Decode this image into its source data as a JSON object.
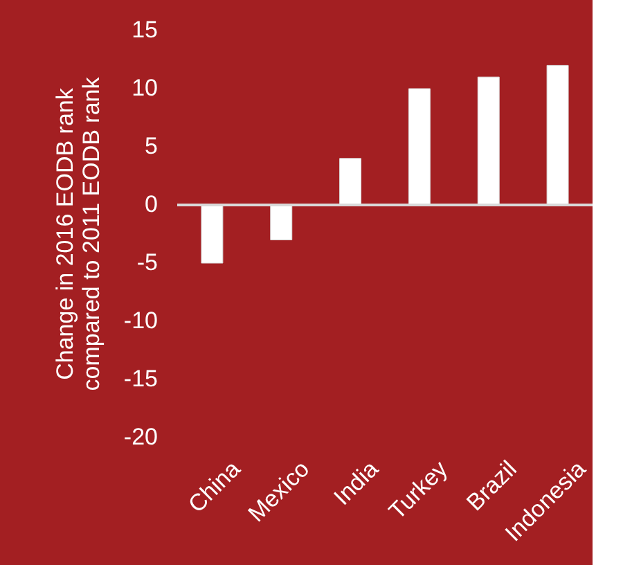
{
  "chart_data": {
    "type": "bar",
    "ylabel": "Change in 2016 EODB rank\ncompared to 2011 EODB rank",
    "categories": [
      "China",
      "Mexico",
      "India",
      "Turkey",
      "Brazil",
      "Indonesia"
    ],
    "values": [
      -5,
      -3,
      4,
      10,
      11,
      12
    ],
    "color": "#ffffff",
    "ylim": [
      -20,
      15
    ],
    "yticks": [
      -20,
      -15,
      -10,
      -5,
      0,
      5,
      10,
      15
    ],
    "ref_lines": [
      {
        "axis": "y",
        "value": 0,
        "color": "#d9d9d9"
      }
    ],
    "grid": false
  }
}
